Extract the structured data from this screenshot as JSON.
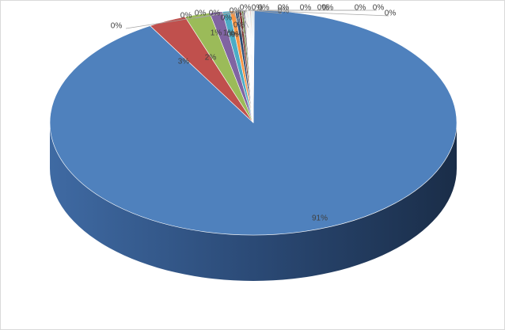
{
  "chart_data": {
    "type": "pie",
    "style": "3d-pie",
    "legend": "none",
    "slices": [
      {
        "label": "91%",
        "value": 91,
        "color": "#4f81bd"
      },
      {
        "label": "3%",
        "value": 3,
        "color": "#c0504d"
      },
      {
        "label": "2%",
        "value": 2,
        "color": "#9bbb59"
      },
      {
        "label": "1%",
        "value": 1,
        "color": "#8064a2"
      },
      {
        "label": "1%",
        "value": 0.6,
        "color": "#4bacc6"
      },
      {
        "label": "0%",
        "value": 0.4,
        "color": "#f79646"
      },
      {
        "label": "0%",
        "value": 0.3,
        "color": "#2c4d75"
      },
      {
        "label": "0%",
        "value": 0.2,
        "color": "#772c2a"
      },
      {
        "label": "0%",
        "value": 0.15,
        "color": "#5f7530"
      },
      {
        "label": "0%",
        "value": 0.1,
        "color": "#4d3b62"
      },
      {
        "label": "0%",
        "value": 0.05,
        "color": "#276a7c"
      },
      {
        "label": "0%",
        "value": 0.05,
        "color": "#b65708"
      },
      {
        "label": "0%",
        "value": 0.05,
        "color": "#729aca"
      },
      {
        "label": "0%",
        "value": 0.05,
        "color": "#cd7371"
      },
      {
        "label": "0%",
        "value": 0.05,
        "color": "#afc97a"
      },
      {
        "label": "0%",
        "value": 0.05,
        "color": "#9983b5"
      },
      {
        "label": "0%",
        "value": 0.05,
        "color": "#6fbdd1"
      },
      {
        "label": "0%",
        "value": 0.05,
        "color": "#f9ab6b"
      },
      {
        "label": "0%",
        "value": 0.05,
        "color": "#3a679c"
      },
      {
        "label": "0%",
        "value": 0.05,
        "color": "#9e3b38"
      },
      {
        "label": "0%",
        "value": 0.05,
        "color": "#7e9c40"
      },
      {
        "label": "0%",
        "value": 0.05,
        "color": "#664f82"
      },
      {
        "label": "0%",
        "value": 0.05,
        "color": "#358ea6"
      },
      {
        "label": "0%",
        "value": 0.05,
        "color": "#f3740b"
      },
      {
        "label": "0%",
        "value": 0.05,
        "color": "#95b3d7"
      }
    ]
  }
}
